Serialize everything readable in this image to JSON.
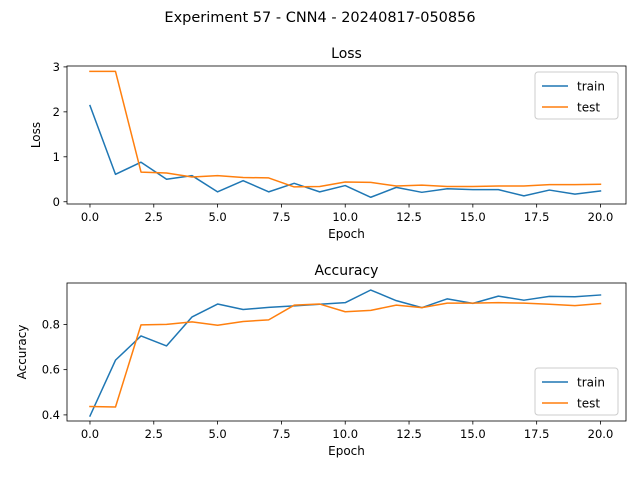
{
  "figure": {
    "suptitle": "Experiment 57 - CNN4 - 20240817-050856"
  },
  "chart_data": [
    {
      "type": "line",
      "title": "Loss",
      "xlabel": "Epoch",
      "ylabel": "Loss",
      "xlim": [
        -0.9,
        21.0
      ],
      "ylim": [
        -0.05,
        3.02
      ],
      "xticks": [
        0.0,
        2.5,
        5.0,
        7.5,
        10.0,
        12.5,
        15.0,
        17.5,
        20.0
      ],
      "xtick_labels": [
        "0.0",
        "2.5",
        "5.0",
        "7.5",
        "10.0",
        "12.5",
        "15.0",
        "17.5",
        "20.0"
      ],
      "yticks": [
        0,
        1,
        2,
        3
      ],
      "ytick_labels": [
        "0",
        "1",
        "2",
        "3"
      ],
      "grid": false,
      "legend": "upper right",
      "x": [
        0,
        1,
        2,
        3,
        4,
        5,
        6,
        7,
        8,
        9,
        10,
        11,
        12,
        13,
        14,
        15,
        16,
        17,
        18,
        19,
        20
      ],
      "series": [
        {
          "name": "train",
          "color": "#1f77b4",
          "values": [
            2.14,
            0.61,
            0.88,
            0.5,
            0.58,
            0.22,
            0.47,
            0.22,
            0.41,
            0.22,
            0.36,
            0.1,
            0.32,
            0.21,
            0.29,
            0.27,
            0.27,
            0.13,
            0.26,
            0.17,
            0.24
          ]
        },
        {
          "name": "test",
          "color": "#ff7f0e",
          "values": [
            2.9,
            2.9,
            0.66,
            0.64,
            0.55,
            0.58,
            0.54,
            0.53,
            0.33,
            0.34,
            0.44,
            0.43,
            0.35,
            0.37,
            0.34,
            0.34,
            0.35,
            0.35,
            0.38,
            0.38,
            0.39
          ]
        }
      ]
    },
    {
      "type": "line",
      "title": "Accuracy",
      "xlabel": "Epoch",
      "ylabel": "Accuracy",
      "xlim": [
        -0.9,
        21.0
      ],
      "ylim": [
        0.373,
        0.983
      ],
      "xticks": [
        0.0,
        2.5,
        5.0,
        7.5,
        10.0,
        12.5,
        15.0,
        17.5,
        20.0
      ],
      "xtick_labels": [
        "0.0",
        "2.5",
        "5.0",
        "7.5",
        "10.0",
        "12.5",
        "15.0",
        "17.5",
        "20.0"
      ],
      "yticks": [
        0.4,
        0.6,
        0.8
      ],
      "ytick_labels": [
        "0.4",
        "0.6",
        "0.8"
      ],
      "grid": false,
      "legend": "lower right",
      "x": [
        0,
        1,
        2,
        3,
        4,
        5,
        6,
        7,
        8,
        9,
        10,
        11,
        12,
        13,
        14,
        15,
        16,
        17,
        18,
        19,
        20
      ],
      "series": [
        {
          "name": "train",
          "color": "#1f77b4",
          "values": [
            0.395,
            0.642,
            0.749,
            0.705,
            0.833,
            0.89,
            0.866,
            0.875,
            0.882,
            0.889,
            0.896,
            0.952,
            0.905,
            0.874,
            0.913,
            0.893,
            0.925,
            0.907,
            0.924,
            0.922,
            0.93
          ]
        },
        {
          "name": "test",
          "color": "#ff7f0e",
          "values": [
            0.437,
            0.435,
            0.798,
            0.8,
            0.811,
            0.796,
            0.813,
            0.82,
            0.885,
            0.89,
            0.856,
            0.862,
            0.885,
            0.874,
            0.894,
            0.894,
            0.896,
            0.894,
            0.889,
            0.883,
            0.892
          ]
        }
      ]
    }
  ]
}
